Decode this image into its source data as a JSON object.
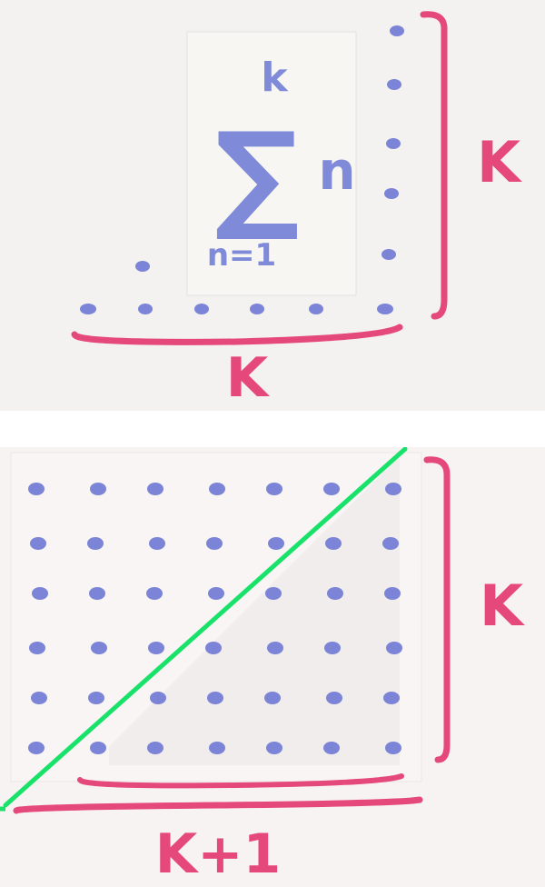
{
  "top": {
    "sum_symbol": "∑",
    "upper_limit": "k",
    "lower_limit": "n=1",
    "summand": "n",
    "bracket_label_right": "K",
    "bracket_label_bottom": "K",
    "dot_rows": [
      1,
      1,
      1,
      1,
      1,
      2,
      6
    ]
  },
  "bottom": {
    "grid_rows": 6,
    "grid_cols": 7,
    "bracket_label_right": "K",
    "bracket_label_bottom": "K+1"
  },
  "colors": {
    "dot": "#7b84d6",
    "bracket": "#e5487a",
    "diagonal": "#19e26a",
    "sum": "#7f8ad8"
  }
}
